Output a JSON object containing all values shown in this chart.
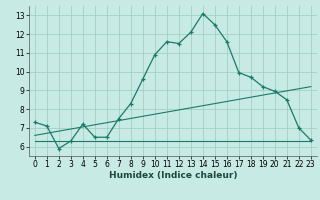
{
  "xlabel": "Humidex (Indice chaleur)",
  "xlim": [
    -0.5,
    23.5
  ],
  "ylim": [
    5.5,
    13.5
  ],
  "yticks": [
    6,
    7,
    8,
    9,
    10,
    11,
    12,
    13
  ],
  "xticks": [
    0,
    1,
    2,
    3,
    4,
    5,
    6,
    7,
    8,
    9,
    10,
    11,
    12,
    13,
    14,
    15,
    16,
    17,
    18,
    19,
    20,
    21,
    22,
    23
  ],
  "bg_color": "#c8eae4",
  "grid_color": "#99ccbb",
  "line_color": "#1a7a6a",
  "curve1_x": [
    0,
    1,
    2,
    3,
    4,
    5,
    6,
    7,
    8,
    9,
    10,
    11,
    12,
    13,
    14,
    15,
    16,
    17,
    18,
    19,
    20,
    21,
    22,
    23
  ],
  "curve1_y": [
    7.3,
    7.1,
    5.9,
    6.3,
    7.2,
    6.5,
    6.5,
    7.5,
    8.3,
    9.6,
    10.9,
    11.6,
    11.5,
    12.1,
    13.1,
    12.5,
    11.6,
    9.95,
    9.7,
    9.2,
    8.95,
    8.5,
    7.0,
    6.35
  ],
  "curve2_x": [
    0,
    23
  ],
  "curve2_y": [
    6.3,
    6.3
  ],
  "curve3_x": [
    0,
    23
  ],
  "curve3_y": [
    6.6,
    9.2
  ],
  "tick_fontsize": 5.5,
  "xlabel_fontsize": 6.5
}
